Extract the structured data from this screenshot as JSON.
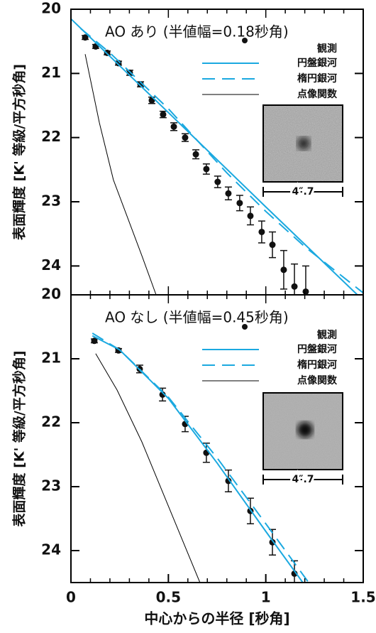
{
  "chart_data": [
    {
      "type": "line",
      "title": "AO あり (半値幅=0.18秒角)",
      "ylabel": "表面輝度 [K' 等級/平方秒角]",
      "inset_label": "4″.7",
      "xlim": [
        0,
        1.5
      ],
      "ylim": [
        20,
        24.45
      ],
      "y_inverted": true,
      "yticks": [
        20,
        21,
        22,
        23,
        24
      ],
      "series": [
        {
          "name": "観測",
          "style": "points",
          "color": "#111111",
          "x": [
            0.073,
            0.127,
            0.186,
            0.244,
            0.302,
            0.357,
            0.415,
            0.473,
            0.528,
            0.586,
            0.641,
            0.695,
            0.753,
            0.808,
            0.866,
            0.921,
            0.979,
            1.034,
            1.092,
            1.147,
            1.205
          ],
          "values": [
            20.44,
            20.58,
            20.68,
            20.84,
            20.99,
            21.17,
            21.42,
            21.64,
            21.83,
            22.0,
            22.26,
            22.49,
            22.69,
            22.87,
            23.02,
            23.22,
            23.47,
            23.67,
            24.06,
            24.32,
            24.4
          ],
          "errors": [
            0.03,
            0.03,
            0.03,
            0.03,
            0.04,
            0.04,
            0.05,
            0.05,
            0.06,
            0.06,
            0.07,
            0.08,
            0.09,
            0.1,
            0.12,
            0.14,
            0.17,
            0.2,
            0.3,
            0.35,
            0.4
          ]
        },
        {
          "name": "円盤銀河",
          "style": "solid",
          "color": "#1ba9e0",
          "width": 2,
          "x": [
            0,
            0.5,
            1.0,
            1.47
          ],
          "values": [
            20.15,
            21.61,
            23.08,
            24.45
          ]
        },
        {
          "name": "楕円銀河",
          "style": "dashed",
          "color": "#1ba9e0",
          "width": 2,
          "x": [
            0.05,
            0.2,
            0.5,
            0.8,
            1.0,
            1.2,
            1.5
          ],
          "values": [
            20.3,
            20.68,
            21.55,
            22.55,
            23.15,
            23.7,
            24.42
          ]
        },
        {
          "name": "点像関数",
          "style": "solid",
          "color": "#000000",
          "width": 1,
          "x": [
            0.073,
            0.146,
            0.218,
            0.364,
            0.437
          ],
          "values": [
            20.7,
            21.77,
            22.66,
            23.84,
            24.45
          ]
        }
      ]
    },
    {
      "type": "line",
      "title": "AO なし (半値幅=0.45秒角)",
      "ylabel": "表面輝度 [K' 等級/平方秒角]",
      "xlabel": "中心からの半径 [秒角]",
      "inset_label": "4″.7",
      "xlim": [
        0,
        1.5
      ],
      "xticks": [
        0,
        0.5,
        1,
        1.5
      ],
      "ylim": [
        20,
        24.5
      ],
      "y_inverted": true,
      "yticks": [
        20,
        21,
        22,
        23,
        24
      ],
      "series": [
        {
          "name": "観測",
          "style": "points",
          "color": "#111111",
          "x": [
            0.12,
            0.244,
            0.353,
            0.47,
            0.586,
            0.695,
            0.808,
            0.921,
            1.034,
            1.147
          ],
          "values": [
            20.72,
            20.87,
            21.16,
            21.56,
            22.02,
            22.47,
            22.91,
            23.38,
            23.87,
            24.36
          ],
          "errors": [
            0.03,
            0.03,
            0.06,
            0.1,
            0.12,
            0.15,
            0.17,
            0.2,
            0.2,
            0.2
          ]
        },
        {
          "name": "円盤銀河",
          "style": "solid",
          "color": "#1ba9e0",
          "width": 2,
          "x": [
            0.11,
            0.25,
            0.5,
            0.75,
            1.0,
            1.19
          ],
          "values": [
            20.64,
            20.86,
            21.62,
            22.63,
            23.7,
            24.5
          ]
        },
        {
          "name": "楕円銀河",
          "style": "dashed",
          "color": "#1ba9e0",
          "width": 2,
          "x": [
            0.11,
            0.25,
            0.5,
            0.75,
            1.0,
            1.22
          ],
          "values": [
            20.6,
            20.86,
            21.6,
            22.55,
            23.58,
            24.5
          ]
        },
        {
          "name": "点像関数",
          "style": "solid",
          "color": "#000000",
          "width": 1,
          "x": [
            0.127,
            0.237,
            0.364,
            0.662
          ],
          "values": [
            20.92,
            21.49,
            22.3,
            24.5
          ]
        }
      ]
    }
  ]
}
